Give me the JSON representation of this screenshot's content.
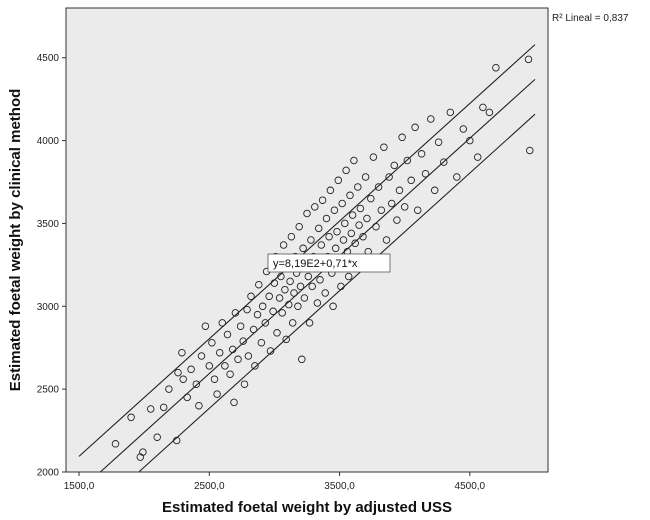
{
  "chart_data": {
    "type": "scatter",
    "xlabel": "Estimated foetal weight by adjusted USS",
    "ylabel": "Estimated foetal weight by clinical method",
    "xlim": [
      1400,
      5100
    ],
    "ylim": [
      2000,
      4800
    ],
    "x_ticks": [
      {
        "value": 1500,
        "label": "1500,0"
      },
      {
        "value": 2500,
        "label": "2500,0"
      },
      {
        "value": 3500,
        "label": "3500,0"
      },
      {
        "value": 4500,
        "label": "4500,0"
      }
    ],
    "y_ticks": [
      {
        "value": 2000,
        "label": "2000"
      },
      {
        "value": 2500,
        "label": "2500"
      },
      {
        "value": 3000,
        "label": "3000"
      },
      {
        "value": 3500,
        "label": "3500"
      },
      {
        "value": 4000,
        "label": "4000"
      },
      {
        "value": 4500,
        "label": "4500"
      }
    ],
    "r_squared_label": "R² Lineal = 0,837",
    "fit_equation": "y=8,19E2+0,71*x",
    "fit": {
      "intercept": 819,
      "slope": 0.71
    },
    "prediction_band_offset": 210,
    "plot_background": "#ebebeb",
    "marker_color": "#222222",
    "points": [
      [
        1780,
        2170
      ],
      [
        1900,
        2330
      ],
      [
        1970,
        2090
      ],
      [
        1990,
        2120
      ],
      [
        2050,
        2380
      ],
      [
        2100,
        2210
      ],
      [
        2150,
        2390
      ],
      [
        2190,
        2500
      ],
      [
        2250,
        2190
      ],
      [
        2260,
        2600
      ],
      [
        2290,
        2720
      ],
      [
        2300,
        2560
      ],
      [
        2330,
        2450
      ],
      [
        2360,
        2620
      ],
      [
        2400,
        2530
      ],
      [
        2420,
        2400
      ],
      [
        2440,
        2700
      ],
      [
        2470,
        2880
      ],
      [
        2500,
        2640
      ],
      [
        2520,
        2780
      ],
      [
        2540,
        2560
      ],
      [
        2560,
        2470
      ],
      [
        2580,
        2720
      ],
      [
        2600,
        2900
      ],
      [
        2620,
        2640
      ],
      [
        2640,
        2830
      ],
      [
        2660,
        2590
      ],
      [
        2680,
        2740
      ],
      [
        2690,
        2420
      ],
      [
        2700,
        2960
      ],
      [
        2720,
        2680
      ],
      [
        2740,
        2880
      ],
      [
        2760,
        2790
      ],
      [
        2770,
        2530
      ],
      [
        2790,
        2980
      ],
      [
        2800,
        2700
      ],
      [
        2820,
        3060
      ],
      [
        2840,
        2860
      ],
      [
        2850,
        2640
      ],
      [
        2870,
        2950
      ],
      [
        2880,
        3130
      ],
      [
        2900,
        2780
      ],
      [
        2910,
        3000
      ],
      [
        2930,
        2900
      ],
      [
        2940,
        3210
      ],
      [
        2960,
        3060
      ],
      [
        2970,
        2730
      ],
      [
        2990,
        2970
      ],
      [
        3000,
        3140
      ],
      [
        3010,
        3300
      ],
      [
        3020,
        2840
      ],
      [
        3040,
        3050
      ],
      [
        3050,
        3180
      ],
      [
        3060,
        2960
      ],
      [
        3070,
        3370
      ],
      [
        3080,
        3100
      ],
      [
        3090,
        2800
      ],
      [
        3100,
        3250
      ],
      [
        3110,
        3010
      ],
      [
        3120,
        3150
      ],
      [
        3130,
        3420
      ],
      [
        3140,
        2900
      ],
      [
        3150,
        3080
      ],
      [
        3160,
        3300
      ],
      [
        3170,
        3200
      ],
      [
        3180,
        3000
      ],
      [
        3190,
        3480
      ],
      [
        3200,
        3120
      ],
      [
        3210,
        2680
      ],
      [
        3220,
        3350
      ],
      [
        3230,
        3050
      ],
      [
        3240,
        3240
      ],
      [
        3250,
        3560
      ],
      [
        3260,
        3180
      ],
      [
        3270,
        2900
      ],
      [
        3280,
        3400
      ],
      [
        3290,
        3120
      ],
      [
        3300,
        3300
      ],
      [
        3310,
        3600
      ],
      [
        3320,
        3230
      ],
      [
        3330,
        3020
      ],
      [
        3340,
        3470
      ],
      [
        3350,
        3160
      ],
      [
        3360,
        3370
      ],
      [
        3370,
        3640
      ],
      [
        3380,
        3260
      ],
      [
        3390,
        3080
      ],
      [
        3400,
        3530
      ],
      [
        3410,
        3300
      ],
      [
        3420,
        3420
      ],
      [
        3430,
        3700
      ],
      [
        3440,
        3200
      ],
      [
        3450,
        3000
      ],
      [
        3460,
        3580
      ],
      [
        3470,
        3350
      ],
      [
        3480,
        3450
      ],
      [
        3490,
        3760
      ],
      [
        3500,
        3280
      ],
      [
        3510,
        3120
      ],
      [
        3520,
        3620
      ],
      [
        3530,
        3400
      ],
      [
        3540,
        3500
      ],
      [
        3550,
        3820
      ],
      [
        3560,
        3330
      ],
      [
        3570,
        3180
      ],
      [
        3580,
        3670
      ],
      [
        3590,
        3440
      ],
      [
        3600,
        3550
      ],
      [
        3610,
        3880
      ],
      [
        3620,
        3380
      ],
      [
        3630,
        3240
      ],
      [
        3640,
        3720
      ],
      [
        3650,
        3490
      ],
      [
        3660,
        3590
      ],
      [
        3680,
        3420
      ],
      [
        3700,
        3780
      ],
      [
        3710,
        3530
      ],
      [
        3720,
        3330
      ],
      [
        3740,
        3650
      ],
      [
        3760,
        3900
      ],
      [
        3780,
        3480
      ],
      [
        3800,
        3720
      ],
      [
        3820,
        3580
      ],
      [
        3840,
        3960
      ],
      [
        3860,
        3400
      ],
      [
        3880,
        3780
      ],
      [
        3900,
        3620
      ],
      [
        3920,
        3850
      ],
      [
        3940,
        3520
      ],
      [
        3960,
        3700
      ],
      [
        3980,
        4020
      ],
      [
        4000,
        3600
      ],
      [
        4020,
        3880
      ],
      [
        4050,
        3760
      ],
      [
        4080,
        4080
      ],
      [
        4100,
        3580
      ],
      [
        4130,
        3920
      ],
      [
        4160,
        3800
      ],
      [
        4200,
        4130
      ],
      [
        4230,
        3700
      ],
      [
        4260,
        3990
      ],
      [
        4300,
        3870
      ],
      [
        4350,
        4170
      ],
      [
        4400,
        3780
      ],
      [
        4450,
        4070
      ],
      [
        4500,
        4000
      ],
      [
        4560,
        3900
      ],
      [
        4600,
        4200
      ],
      [
        4650,
        4170
      ],
      [
        4700,
        4440
      ],
      [
        4950,
        4490
      ],
      [
        4960,
        3940
      ]
    ]
  }
}
